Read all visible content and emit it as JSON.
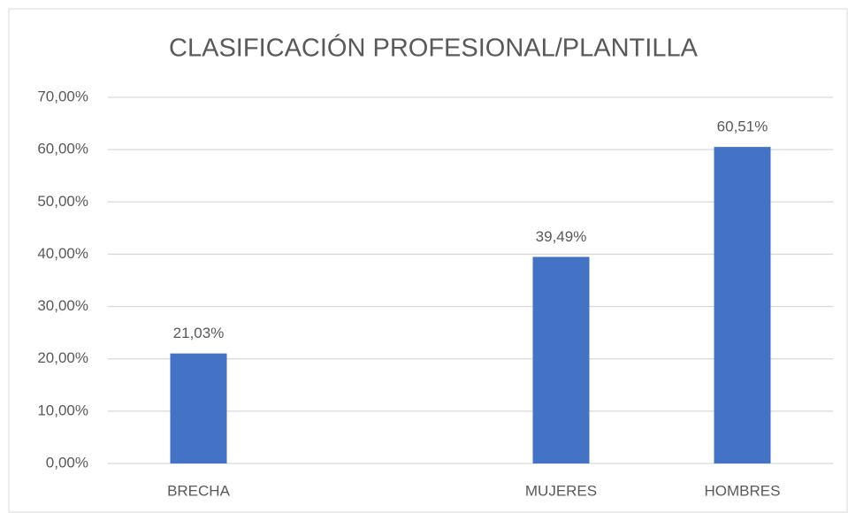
{
  "chart_data": {
    "type": "bar",
    "title": "CLASIFICACIÓN  PROFESIONAL/PLANTILLA",
    "categories": [
      "BRECHA",
      null,
      "MUJERES",
      "HOMBRES"
    ],
    "values": [
      21.03,
      null,
      39.49,
      60.51
    ],
    "value_labels": [
      "21,03%",
      null,
      "39,49%",
      "60,51%"
    ],
    "color": "#4472c4",
    "ylim": [
      0,
      70
    ],
    "yticks": [
      {
        "value": 0,
        "label": "0,00%"
      },
      {
        "value": 10,
        "label": "10,00%"
      },
      {
        "value": 20,
        "label": "20,00%"
      },
      {
        "value": 30,
        "label": "30,00%"
      },
      {
        "value": 40,
        "label": "40,00%"
      },
      {
        "value": 50,
        "label": "50,00%"
      },
      {
        "value": 60,
        "label": "60,00%"
      },
      {
        "value": 70,
        "label": "70,00%"
      }
    ],
    "grid": true
  }
}
